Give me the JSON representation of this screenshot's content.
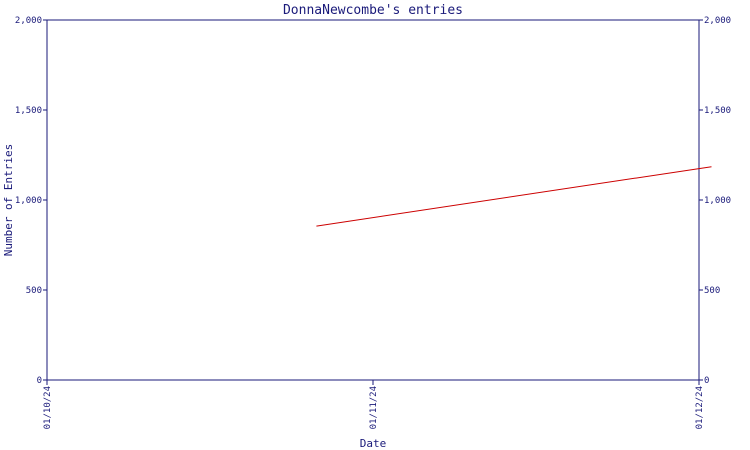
{
  "chart_data": {
    "type": "line",
    "title": "DonnaNewcombe's entries",
    "xlabel": "Date",
    "ylabel": "Number of Entries",
    "x_ticks": [
      "01/10/24",
      "01/11/24",
      "01/12/24"
    ],
    "y_ticks": [
      "0",
      "500",
      "1,000",
      "1,500",
      "2,000"
    ],
    "ylim": [
      0,
      2000
    ],
    "xlim": [
      "01/10/24",
      "01/12/24"
    ],
    "grid": false,
    "legend": "none",
    "series": [
      {
        "color": "#cc0000",
        "points": [
          {
            "x": "01/10/24 19:50",
            "y": 855
          },
          {
            "x": "01/12/24 00:55",
            "y": 1185
          }
        ]
      }
    ]
  }
}
